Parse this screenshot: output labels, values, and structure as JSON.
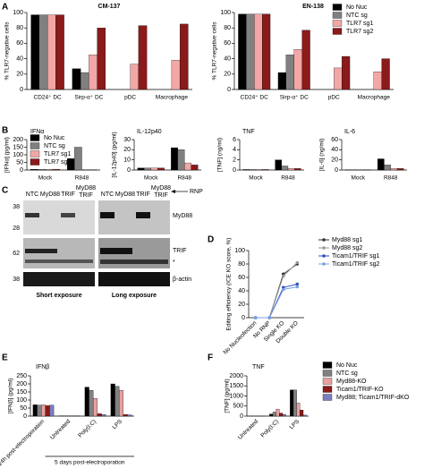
{
  "chart_data": [
    {
      "type": "bar",
      "panel": "A",
      "title": "CM-137",
      "ylabel": "% TLR7-negative cells",
      "categories": [
        "CD24⁺ DC",
        "Sirp-α⁺ DC",
        "pDC",
        "Macrophage"
      ],
      "series": [
        {
          "name": "No Nuc",
          "color": "#000000",
          "values": [
            97,
            27,
            0,
            0
          ]
        },
        {
          "name": "NTC sg",
          "color": "#808080",
          "values": [
            97,
            22,
            0,
            0
          ]
        },
        {
          "name": "TLR7 sg1",
          "color": "#f2a7a7",
          "values": [
            97,
            45,
            33,
            38
          ]
        },
        {
          "name": "TLR7 sg2",
          "color": "#8b1a1a",
          "values": [
            97,
            80,
            83,
            85
          ]
        }
      ],
      "ylim": [
        0,
        100
      ],
      "yticks": [
        0,
        20,
        40,
        60,
        80,
        100
      ]
    },
    {
      "type": "bar",
      "title": "EN-138",
      "ylabel": "% TLR7-negative cells",
      "categories": [
        "CD24⁺ DC",
        "Sirp-α⁺ DC",
        "pDC",
        "Macrophage"
      ],
      "series": [
        {
          "name": "No Nuc",
          "color": "#000000",
          "values": [
            98,
            22,
            0,
            0
          ]
        },
        {
          "name": "NTC sg",
          "color": "#808080",
          "values": [
            98,
            45,
            0,
            0
          ]
        },
        {
          "name": "TLR7 sg1",
          "color": "#f2a7a7",
          "values": [
            98,
            52,
            28,
            23
          ]
        },
        {
          "name": "TLR7 sg2",
          "color": "#8b1a1a",
          "values": [
            98,
            77,
            43,
            40
          ]
        }
      ],
      "ylim": [
        0,
        100
      ],
      "yticks": [
        0,
        20,
        40,
        60,
        80,
        100
      ],
      "legend": "upper right"
    },
    {
      "type": "bar",
      "panel": "B",
      "title": "IFNα",
      "ylabel": "[IFNα] (pg/ml)",
      "categories": [
        "Mock",
        "R848"
      ],
      "series": [
        {
          "name": "No Nuc",
          "color": "#000000",
          "values": [
            5,
            75
          ]
        },
        {
          "name": "NTC sg",
          "color": "#808080",
          "values": [
            5,
            150
          ]
        },
        {
          "name": "TLR7 sg1",
          "color": "#f2a7a7",
          "values": [
            5,
            2
          ]
        },
        {
          "name": "TLR7 sg2",
          "color": "#8b1a1a",
          "values": [
            5,
            2
          ]
        }
      ],
      "ylim": [
        0,
        200
      ],
      "yticks": [
        0,
        50,
        100,
        150,
        200
      ],
      "legend": "upper left"
    },
    {
      "type": "bar",
      "title": "IL-12p40",
      "ylabel": "[IL-12p40] (pg/ml)",
      "categories": [
        "Mock",
        "R848"
      ],
      "series": [
        {
          "name": "No Nuc",
          "color": "#000000",
          "values": [
            2,
            22
          ]
        },
        {
          "name": "NTC sg",
          "color": "#808080",
          "values": [
            2,
            20
          ]
        },
        {
          "name": "TLR7 sg1",
          "color": "#f2a7a7",
          "values": [
            2,
            7
          ]
        },
        {
          "name": "TLR7 sg2",
          "color": "#8b1a1a",
          "values": [
            2,
            5
          ]
        }
      ],
      "ylim": [
        0,
        30
      ],
      "yticks": [
        0,
        10,
        20,
        30
      ]
    },
    {
      "type": "bar",
      "title": "TNF",
      "ylabel": "[TNF] (ng/ml)",
      "categories": [
        "Mock",
        "R848"
      ],
      "series": [
        {
          "name": "No Nuc",
          "color": "#000000",
          "values": [
            0.1,
            2
          ]
        },
        {
          "name": "NTC sg",
          "color": "#808080",
          "values": [
            0.1,
            0.8
          ]
        },
        {
          "name": "TLR7 sg1",
          "color": "#f2a7a7",
          "values": [
            0.1,
            0.3
          ]
        },
        {
          "name": "TLR7 sg2",
          "color": "#8b1a1a",
          "values": [
            0.1,
            0.3
          ]
        }
      ],
      "ylim": [
        0,
        6
      ],
      "yticks": [
        0,
        2,
        4,
        6
      ]
    },
    {
      "type": "bar",
      "title": "IL-6",
      "ylabel": "[IL-6] (ng/ml)",
      "categories": [
        "Mock",
        "R848"
      ],
      "series": [
        {
          "name": "No Nuc",
          "color": "#000000",
          "values": [
            0.5,
            22
          ]
        },
        {
          "name": "NTC sg",
          "color": "#808080",
          "values": [
            0.5,
            10
          ]
        },
        {
          "name": "TLR7 sg1",
          "color": "#f2a7a7",
          "values": [
            0.5,
            3
          ]
        },
        {
          "name": "TLR7 sg2",
          "color": "#8b1a1a",
          "values": [
            0.5,
            3
          ]
        }
      ],
      "ylim": [
        0,
        60
      ],
      "yticks": [
        0,
        20,
        40,
        60
      ]
    },
    {
      "type": "line",
      "panel": "D",
      "ylabel": "Editing efficiency (ICE KO score, %)",
      "categories": [
        "No Nucleofection",
        "No RNP",
        "Single KO",
        "Double KO"
      ],
      "series": [
        {
          "name": "Myd88 sg1",
          "color": "#333333",
          "values": [
            0,
            0,
            65,
            80
          ]
        },
        {
          "name": "Myd88 sg2",
          "color": "#999999",
          "values": [
            0,
            0,
            62,
            82
          ]
        },
        {
          "name": "Ticam1/TRIF sg1",
          "color": "#3050c0",
          "values": [
            0,
            0,
            45,
            50
          ]
        },
        {
          "name": "Ticam1/TRIF sg2",
          "color": "#7aa0e0",
          "values": [
            0,
            0,
            42,
            46
          ]
        }
      ],
      "ylim": [
        0,
        100
      ],
      "yticks": [
        0,
        20,
        40,
        60,
        80,
        100
      ],
      "legend": "right"
    },
    {
      "type": "bar",
      "panel": "E",
      "title": "IFNβ",
      "ylabel": "[IFNβ] (pg/ml)",
      "categories": [
        "24h post-electroporation",
        "Untreated",
        "Poly(I:C)",
        "LPS"
      ],
      "series": [
        {
          "name": "No Nuc",
          "color": "#000000",
          "values": [
            70,
            2,
            180,
            200
          ]
        },
        {
          "name": "NTC sg",
          "color": "#808080",
          "values": [
            68,
            2,
            160,
            185
          ]
        },
        {
          "name": "Myd88-KO",
          "color": "#e8a0a0",
          "values": [
            70,
            2,
            110,
            160
          ]
        },
        {
          "name": "Ticam1/TRIF-KO",
          "color": "#8b1a1a",
          "values": [
            65,
            2,
            15,
            10
          ]
        },
        {
          "name": "Myd88; Ticam1/TRIF-dKO",
          "color": "#7b7fc0",
          "values": [
            68,
            2,
            10,
            8
          ]
        }
      ],
      "ylim": [
        0,
        250
      ],
      "yticks": [
        0,
        50,
        100,
        150,
        200,
        250
      ],
      "annotation": "5 days post-electroporation"
    },
    {
      "type": "bar",
      "panel": "F",
      "title": "TNF",
      "ylabel": "[TNF] (pg/ml)",
      "categories": [
        "Untreated",
        "Poly(I:C)",
        "LPS"
      ],
      "series": [
        {
          "name": "No Nuc",
          "color": "#000000",
          "values": [
            5,
            100,
            1300
          ]
        },
        {
          "name": "NTC sg",
          "color": "#808080",
          "values": [
            5,
            200,
            1300
          ]
        },
        {
          "name": "Myd88-KO",
          "color": "#e8a0a0",
          "values": [
            5,
            350,
            650
          ]
        },
        {
          "name": "Ticam1/TRIF-KO",
          "color": "#8b1a1a",
          "values": [
            5,
            150,
            300
          ]
        },
        {
          "name": "Myd88; Ticam1/TRIF-dKO",
          "color": "#7b7fc0",
          "values": [
            5,
            80,
            50
          ]
        }
      ],
      "ylim": [
        0,
        2000
      ],
      "yticks": [
        0,
        500,
        1000,
        1500,
        2000
      ],
      "legend": "right"
    }
  ],
  "blot": {
    "panel": "C",
    "lanes": [
      "NTC",
      "MyD88",
      "TRIF"
    ],
    "double_lane": [
      "MyD88",
      "TRIF"
    ],
    "arrow_label": "RNP",
    "bands": [
      "MyD88",
      "TRIF",
      "*",
      "β-actin"
    ],
    "markers": [
      38,
      28,
      62,
      38
    ],
    "exposures": [
      "Short exposure",
      "Long exposure"
    ]
  }
}
